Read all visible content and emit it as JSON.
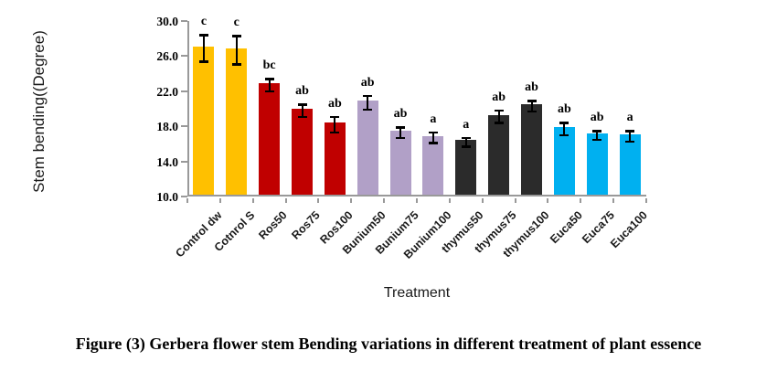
{
  "caption": "Figure (3) Gerbera flower stem Bending variations in different treatment of plant essence",
  "colors": {
    "control": "#FFC000",
    "ros": "#C00000",
    "bunium": "#B1A0C7",
    "thymus": "#2B2B2B",
    "euca": "#00B0F0",
    "axis": "#999999",
    "error_bar": "#000000",
    "text": "#1a1a1a"
  },
  "chart_data": {
    "type": "bar",
    "title": "",
    "xlabel": "Treatment",
    "ylabel": "Stem bending((Degree)",
    "ylim": [
      10.0,
      30.0
    ],
    "y_ticks": [
      "30.0",
      "26.0",
      "22.0",
      "18.0",
      "14.0",
      "10.0"
    ],
    "grid": false,
    "legend": "none",
    "error_bars": true,
    "categories": [
      "Control dw",
      "Cotnrol S",
      "Ros50",
      "Ros75",
      "Ros100",
      "Bunium50",
      "Bunium75",
      "Bunium100",
      "thymus50",
      "thymus75",
      "thymus100",
      "Euca50",
      "Euca75",
      "Euca100"
    ],
    "values": [
      26.9,
      26.7,
      22.7,
      19.8,
      18.2,
      20.7,
      17.3,
      16.7,
      16.2,
      19.1,
      20.3,
      17.7,
      17.0,
      16.9
    ],
    "errors": [
      1.5,
      1.6,
      0.7,
      0.7,
      0.9,
      0.8,
      0.6,
      0.6,
      0.5,
      0.7,
      0.6,
      0.7,
      0.5,
      0.6
    ],
    "sig_letters": [
      "c",
      "c",
      "bc",
      "ab",
      "ab",
      "ab",
      "ab",
      "a",
      "a",
      "ab",
      "ab",
      "ab",
      "ab",
      "a"
    ],
    "bar_colors": [
      "#FFC000",
      "#FFC000",
      "#C00000",
      "#C00000",
      "#C00000",
      "#B1A0C7",
      "#B1A0C7",
      "#B1A0C7",
      "#2B2B2B",
      "#2B2B2B",
      "#2B2B2B",
      "#00B0F0",
      "#00B0F0",
      "#00B0F0"
    ]
  }
}
